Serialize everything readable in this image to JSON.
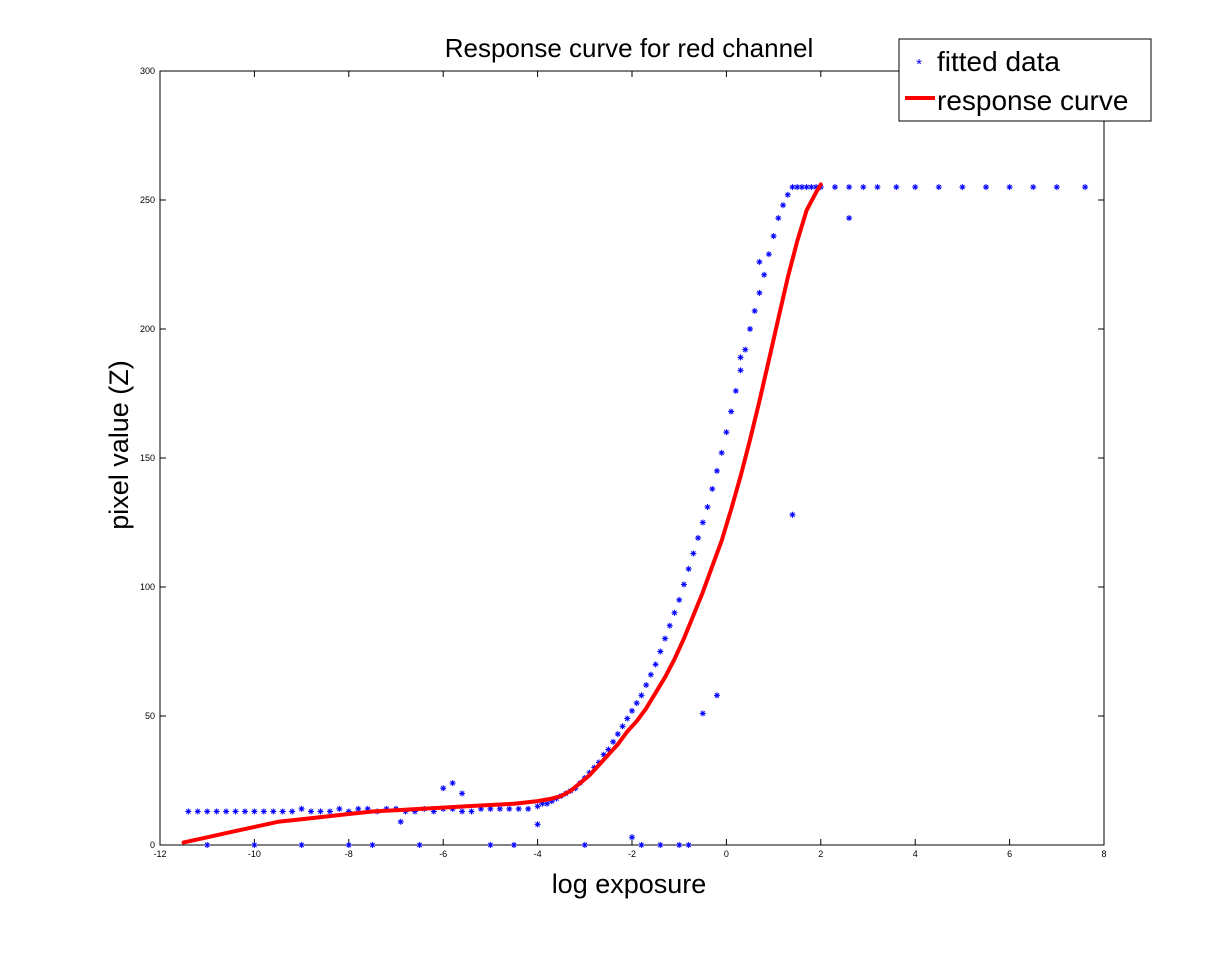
{
  "chart_data": {
    "type": "scatter",
    "title": "Response curve for red channel",
    "xlabel": "log exposure",
    "ylabel": "pixel value (Z)",
    "xlim": [
      -12,
      8
    ],
    "ylim": [
      0,
      300
    ],
    "xticks": [
      "-12",
      "-10",
      "-8",
      "-6",
      "-4",
      "-2",
      "0",
      "2",
      "4",
      "6",
      "8"
    ],
    "yticks": [
      "0",
      "50",
      "100",
      "150",
      "200",
      "250",
      "300"
    ],
    "grid": false,
    "legend": {
      "placement": "top-right",
      "entries": [
        "fitted data",
        "response curve"
      ]
    },
    "series": [
      {
        "name": "fitted data",
        "kind": "scatter",
        "marker": "asterisk",
        "color": "#0000ff",
        "x": [
          -11.4,
          -11.2,
          -11.0,
          -10.8,
          -10.6,
          -10.4,
          -10.2,
          -10.0,
          -9.8,
          -9.6,
          -9.4,
          -9.2,
          -9.0,
          -8.8,
          -8.6,
          -8.4,
          -8.2,
          -8.0,
          -7.8,
          -7.6,
          -7.4,
          -7.2,
          -7.0,
          -6.8,
          -6.6,
          -6.4,
          -6.2,
          -6.0,
          -5.8,
          -5.6,
          -5.4,
          -5.2,
          -5.0,
          -4.8,
          -4.6,
          -4.4,
          -4.2,
          -4.0,
          -3.9,
          -3.8,
          -3.7,
          -3.6,
          -3.5,
          -3.4,
          -3.3,
          -3.2,
          -3.1,
          -3.0,
          -2.9,
          -2.8,
          -2.7,
          -2.6,
          -2.5,
          -2.4,
          -2.3,
          -2.2,
          -2.1,
          -2.0,
          -1.9,
          -1.8,
          -1.7,
          -1.6,
          -1.5,
          -1.4,
          -1.3,
          -1.2,
          -1.1,
          -1.0,
          -0.9,
          -0.8,
          -0.7,
          -0.6,
          -0.5,
          -0.4,
          -0.3,
          -0.2,
          -0.1,
          0.0,
          0.1,
          0.2,
          0.3,
          0.4,
          0.5,
          0.6,
          0.7,
          0.8,
          0.9,
          1.0,
          1.1,
          1.2,
          1.3,
          1.4,
          1.5,
          1.6,
          1.7,
          1.8,
          1.9,
          2.0,
          2.3,
          2.6,
          2.9,
          3.2,
          3.6,
          4.0,
          4.5,
          5.0,
          5.5,
          6.0,
          6.5,
          7.0,
          7.6,
          -6.0,
          -5.8,
          -5.6,
          -6.9,
          -2.0,
          1.4,
          -0.5,
          0.3,
          0.7,
          -0.2,
          2.6,
          -4.0,
          -8.0,
          -9.0,
          -10.0,
          -11.0,
          -7.5,
          -6.5,
          -5.0,
          -4.5,
          -3.0,
          -1.8,
          -1.4,
          -1.0,
          -0.8
        ],
        "y": [
          13,
          13,
          13,
          13,
          13,
          13,
          13,
          13,
          13,
          13,
          13,
          13,
          14,
          13,
          13,
          13,
          14,
          13,
          14,
          14,
          13,
          14,
          14,
          13,
          13,
          14,
          13,
          14,
          14,
          13,
          13,
          14,
          14,
          14,
          14,
          14,
          14,
          15,
          16,
          16,
          17,
          18,
          19,
          20,
          21,
          22,
          24,
          26,
          28,
          30,
          32,
          35,
          37,
          40,
          43,
          46,
          49,
          52,
          55,
          58,
          62,
          66,
          70,
          75,
          80,
          85,
          90,
          95,
          101,
          107,
          113,
          119,
          125,
          131,
          138,
          145,
          152,
          160,
          168,
          176,
          184,
          192,
          200,
          207,
          214,
          221,
          229,
          236,
          243,
          248,
          252,
          255,
          255,
          255,
          255,
          255,
          255,
          255,
          255,
          255,
          255,
          255,
          255,
          255,
          255,
          255,
          255,
          255,
          255,
          255,
          255,
          22,
          24,
          20,
          9,
          3,
          128,
          51,
          189,
          226,
          58,
          243,
          8,
          0,
          0,
          0,
          0,
          0,
          0,
          0,
          0,
          0,
          0,
          0,
          0,
          0
        ]
      },
      {
        "name": "response curve",
        "kind": "line",
        "color": "#ff0000",
        "x": [
          -11.5,
          -11.0,
          -10.5,
          -10.0,
          -9.5,
          -9.0,
          -8.5,
          -8.0,
          -7.5,
          -7.0,
          -6.5,
          -6.0,
          -5.5,
          -5.0,
          -4.5,
          -4.0,
          -3.7,
          -3.5,
          -3.3,
          -3.1,
          -2.9,
          -2.7,
          -2.5,
          -2.3,
          -2.1,
          -1.9,
          -1.7,
          -1.5,
          -1.3,
          -1.1,
          -0.9,
          -0.7,
          -0.5,
          -0.3,
          -0.1,
          0.1,
          0.3,
          0.5,
          0.7,
          0.9,
          1.1,
          1.3,
          1.5,
          1.7,
          1.9,
          2.0
        ],
        "y": [
          1,
          3,
          5,
          7,
          9,
          10,
          11,
          12,
          13,
          13.5,
          14,
          14.5,
          15,
          15.5,
          16,
          17,
          18,
          19,
          21,
          24,
          27,
          31,
          35,
          39,
          44,
          48,
          53,
          59,
          65,
          72,
          80,
          89,
          98,
          108,
          118,
          130,
          143,
          157,
          172,
          188,
          204,
          220,
          234,
          246,
          253,
          256
        ]
      }
    ]
  }
}
